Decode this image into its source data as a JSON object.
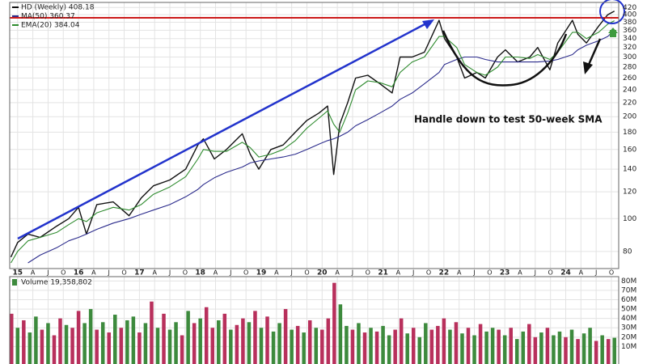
{
  "chart_data": [
    {
      "type": "line",
      "log_scale": true,
      "grid": true,
      "annotation": "Handle down to test 50-week SMA",
      "x": [
        2014.89,
        2015.0,
        2015.17,
        2015.37,
        2015.64,
        2015.84,
        2016.0,
        2016.13,
        2016.3,
        2016.57,
        2016.83,
        2017.03,
        2017.23,
        2017.5,
        2017.76,
        2017.96,
        2018.05,
        2018.23,
        2018.43,
        2018.69,
        2018.82,
        2018.96,
        2019.16,
        2019.36,
        2019.56,
        2019.75,
        2019.95,
        2020.09,
        2020.19,
        2020.29,
        2020.42,
        2020.55,
        2020.75,
        2020.95,
        2021.15,
        2021.28,
        2021.48,
        2021.68,
        2021.92,
        2022.01,
        2022.21,
        2022.34,
        2022.54,
        2022.68,
        2022.88,
        2023.01,
        2023.21,
        2023.41,
        2023.54,
        2023.74,
        2023.87,
        2024.11,
        2024.2,
        2024.34,
        2024.54,
        2024.69,
        2024.8
      ],
      "series": [
        {
          "name": "HD (Weekly) 408.18",
          "color": "#111111",
          "values": [
            77,
            85,
            90,
            88,
            95,
            100,
            108,
            90,
            110,
            112,
            102,
            115,
            125,
            130,
            140,
            165,
            172,
            150,
            160,
            178,
            155,
            140,
            160,
            165,
            180,
            195,
            205,
            215,
            135,
            190,
            220,
            260,
            265,
            250,
            235,
            300,
            300,
            310,
            385,
            340,
            300,
            260,
            270,
            260,
            300,
            315,
            290,
            300,
            320,
            275,
            330,
            385,
            350,
            330,
            370,
            400,
            410
          ]
        },
        {
          "name": "MA(50) 360.37",
          "color": "#2b2b8c",
          "values": [
            null,
            null,
            74,
            78,
            82,
            86,
            88,
            90,
            93,
            97,
            100,
            103,
            106,
            110,
            116,
            122,
            126,
            132,
            137,
            142,
            146,
            148,
            150,
            152,
            155,
            160,
            166,
            170,
            172,
            175,
            180,
            188,
            196,
            205,
            215,
            225,
            235,
            250,
            270,
            285,
            295,
            300,
            300,
            295,
            290,
            290,
            290,
            290,
            290,
            292,
            295,
            305,
            315,
            325,
            335,
            345,
            360
          ]
        },
        {
          "name": "EMA(20) 384.04",
          "color": "#2e8b2e",
          "values": [
            74,
            80,
            86,
            88,
            91,
            96,
            100,
            98,
            104,
            108,
            106,
            110,
            118,
            124,
            133,
            150,
            160,
            158,
            158,
            168,
            162,
            152,
            155,
            160,
            170,
            185,
            198,
            208,
            190,
            180,
            205,
            240,
            255,
            252,
            245,
            270,
            290,
            300,
            345,
            345,
            320,
            285,
            270,
            265,
            280,
            300,
            300,
            297,
            305,
            295,
            310,
            355,
            355,
            340,
            355,
            375,
            384
          ]
        }
      ],
      "xlim": [
        2014.87,
        2024.87
      ],
      "xticks": [
        {
          "value": 2015,
          "label": "15"
        },
        {
          "value": 2015.25,
          "label": "A"
        },
        {
          "value": 2015.5,
          "label": "J"
        },
        {
          "value": 2015.75,
          "label": "O"
        },
        {
          "value": 2016,
          "label": "16"
        },
        {
          "value": 2016.25,
          "label": "A"
        },
        {
          "value": 2016.5,
          "label": "J"
        },
        {
          "value": 2016.75,
          "label": "O"
        },
        {
          "value": 2017,
          "label": "17"
        },
        {
          "value": 2017.25,
          "label": "A"
        },
        {
          "value": 2017.5,
          "label": "J"
        },
        {
          "value": 2017.75,
          "label": "O"
        },
        {
          "value": 2018,
          "label": "18"
        },
        {
          "value": 2018.25,
          "label": "A"
        },
        {
          "value": 2018.5,
          "label": "J"
        },
        {
          "value": 2018.75,
          "label": "O"
        },
        {
          "value": 2019,
          "label": "19"
        },
        {
          "value": 2019.25,
          "label": "A"
        },
        {
          "value": 2019.5,
          "label": "J"
        },
        {
          "value": 2019.75,
          "label": "O"
        },
        {
          "value": 2020,
          "label": "20"
        },
        {
          "value": 2020.25,
          "label": "A"
        },
        {
          "value": 2020.5,
          "label": "J"
        },
        {
          "value": 2020.75,
          "label": "O"
        },
        {
          "value": 2021,
          "label": "21"
        },
        {
          "value": 2021.25,
          "label": "A"
        },
        {
          "value": 2021.5,
          "label": "J"
        },
        {
          "value": 2021.75,
          "label": "O"
        },
        {
          "value": 2022,
          "label": "22"
        },
        {
          "value": 2022.25,
          "label": "A"
        },
        {
          "value": 2022.5,
          "label": "J"
        },
        {
          "value": 2022.75,
          "label": "O"
        },
        {
          "value": 2023,
          "label": "23"
        },
        {
          "value": 2023.25,
          "label": "A"
        },
        {
          "value": 2023.5,
          "label": "J"
        },
        {
          "value": 2023.75,
          "label": "O"
        },
        {
          "value": 2024,
          "label": "24"
        },
        {
          "value": 2024.25,
          "label": "A"
        },
        {
          "value": 2024.5,
          "label": "J"
        },
        {
          "value": 2024.75,
          "label": "O"
        }
      ],
      "ylim": [
        72,
        430
      ],
      "yticks": [
        80,
        100,
        120,
        140,
        160,
        180,
        200,
        220,
        240,
        260,
        280,
        300,
        320,
        340,
        360,
        380,
        400,
        420
      ]
    },
    {
      "type": "bar",
      "label": "Volume 19,358,802",
      "x": [
        2014.9,
        2015.0,
        2015.1,
        2015.2,
        2015.3,
        2015.4,
        2015.5,
        2015.6,
        2015.7,
        2015.8,
        2015.9,
        2016.0,
        2016.1,
        2016.2,
        2016.3,
        2016.4,
        2016.5,
        2016.6,
        2016.7,
        2016.8,
        2016.9,
        2017.0,
        2017.1,
        2017.2,
        2017.3,
        2017.4,
        2017.5,
        2017.6,
        2017.7,
        2017.8,
        2017.9,
        2018.0,
        2018.1,
        2018.2,
        2018.3,
        2018.4,
        2018.5,
        2018.6,
        2018.7,
        2018.8,
        2018.9,
        2019.0,
        2019.1,
        2019.2,
        2019.3,
        2019.4,
        2019.5,
        2019.6,
        2019.7,
        2019.8,
        2019.9,
        2020.0,
        2020.1,
        2020.2,
        2020.3,
        2020.4,
        2020.5,
        2020.6,
        2020.7,
        2020.8,
        2020.9,
        2021.0,
        2021.1,
        2021.2,
        2021.3,
        2021.4,
        2021.5,
        2021.6,
        2021.7,
        2021.8,
        2021.9,
        2022.0,
        2022.1,
        2022.2,
        2022.3,
        2022.4,
        2022.5,
        2022.6,
        2022.7,
        2022.8,
        2022.9,
        2023.0,
        2023.1,
        2023.2,
        2023.3,
        2023.4,
        2023.5,
        2023.6,
        2023.7,
        2023.8,
        2023.9,
        2024.0,
        2024.1,
        2024.2,
        2024.3,
        2024.4,
        2024.5,
        2024.6,
        2024.7,
        2024.8
      ],
      "values": [
        45,
        30,
        38,
        25,
        42,
        28,
        35,
        22,
        40,
        33,
        30,
        48,
        35,
        50,
        28,
        36,
        25,
        44,
        30,
        38,
        42,
        25,
        35,
        58,
        30,
        45,
        28,
        36,
        22,
        48,
        35,
        40,
        52,
        30,
        38,
        45,
        28,
        33,
        40,
        36,
        48,
        30,
        42,
        26,
        35,
        50,
        28,
        32,
        25,
        38,
        30,
        28,
        40,
        78,
        55,
        32,
        28,
        35,
        25,
        30,
        26,
        32,
        22,
        28,
        40,
        24,
        30,
        20,
        35,
        28,
        32,
        40,
        28,
        36,
        24,
        30,
        22,
        34,
        26,
        30,
        28,
        22,
        30,
        18,
        26,
        34,
        20,
        25,
        30,
        22,
        26,
        20,
        28,
        18,
        24,
        30,
        16,
        22,
        18,
        19.36
      ],
      "colors": [
        "#b8305c",
        "#3d8a3d",
        "#b8305c",
        "#3d8a3d",
        "#3d8a3d",
        "#b8305c",
        "#3d8a3d",
        "#b8305c",
        "#b8305c",
        "#3d8a3d",
        "#b8305c",
        "#b8305c",
        "#3d8a3d",
        "#3d8a3d",
        "#b8305c",
        "#3d8a3d",
        "#b8305c",
        "#3d8a3d",
        "#b8305c",
        "#3d8a3d",
        "#3d8a3d",
        "#b8305c",
        "#3d8a3d",
        "#b8305c",
        "#3d8a3d",
        "#b8305c",
        "#3d8a3d",
        "#3d8a3d",
        "#b8305c",
        "#3d8a3d",
        "#b8305c",
        "#3d8a3d",
        "#b8305c",
        "#b8305c",
        "#3d8a3d",
        "#b8305c",
        "#3d8a3d",
        "#b8305c",
        "#b8305c",
        "#3d8a3d",
        "#b8305c",
        "#3d8a3d",
        "#b8305c",
        "#3d8a3d",
        "#3d8a3d",
        "#b8305c",
        "#3d8a3d",
        "#b8305c",
        "#3d8a3d",
        "#b8305c",
        "#3d8a3d",
        "#b8305c",
        "#b8305c",
        "#b8305c",
        "#3d8a3d",
        "#3d8a3d",
        "#b8305c",
        "#3d8a3d",
        "#b8305c",
        "#3d8a3d",
        "#b8305c",
        "#3d8a3d",
        "#3d8a3d",
        "#b8305c",
        "#b8305c",
        "#3d8a3d",
        "#b8305c",
        "#3d8a3d",
        "#3d8a3d",
        "#b8305c",
        "#b8305c",
        "#b8305c",
        "#3d8a3d",
        "#b8305c",
        "#3d8a3d",
        "#b8305c",
        "#3d8a3d",
        "#b8305c",
        "#3d8a3d",
        "#3d8a3d",
        "#b8305c",
        "#3d8a3d",
        "#b8305c",
        "#3d8a3d",
        "#3d8a3d",
        "#b8305c",
        "#b8305c",
        "#3d8a3d",
        "#b8305c",
        "#3d8a3d",
        "#3d8a3d",
        "#b8305c",
        "#3d8a3d",
        "#b8305c",
        "#3d8a3d",
        "#3d8a3d",
        "#b8305c",
        "#3d8a3d",
        "#b8305c",
        "#3d8a3d"
      ],
      "ylim": [
        0,
        82
      ],
      "yticks": [
        {
          "value": 10,
          "label": "10M"
        },
        {
          "value": 20,
          "label": "20M"
        },
        {
          "value": 30,
          "label": "30M"
        },
        {
          "value": 40,
          "label": "40M"
        },
        {
          "value": 50,
          "label": "50M"
        },
        {
          "value": 60,
          "label": "60M"
        },
        {
          "value": 70,
          "label": "70M"
        },
        {
          "value": 80,
          "label": "80M"
        }
      ]
    }
  ]
}
